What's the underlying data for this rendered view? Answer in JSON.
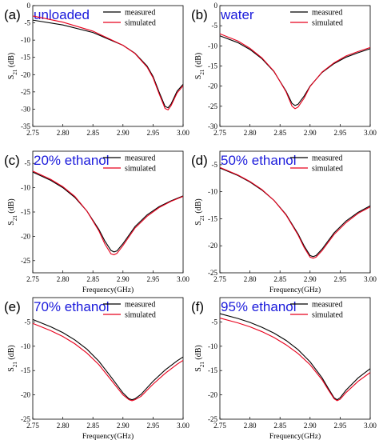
{
  "chart_data": [
    {
      "type": "line",
      "panel_label": "(a)",
      "title": "unloaded",
      "ylabel": "S21 (dB)",
      "xlabel": "",
      "xlim": [
        2.75,
        3.0
      ],
      "ylim": [
        -35,
        0
      ],
      "xticks": [
        "2.75",
        "2.80",
        "2.85",
        "2.90",
        "2.95",
        "3.00"
      ],
      "yticks": [
        "0",
        "-5",
        "-10",
        "-15",
        "-20",
        "-25",
        "-30",
        "-35"
      ],
      "legend": "top-right",
      "series": [
        {
          "name": "measured",
          "color": "#000000",
          "x": [
            2.75,
            2.8,
            2.85,
            2.9,
            2.92,
            2.94,
            2.95,
            2.96,
            2.97,
            2.975,
            2.98,
            2.99,
            3.0
          ],
          "y": [
            -4.2,
            -5.6,
            -7.8,
            -11.5,
            -13.8,
            -17.5,
            -20.5,
            -25.0,
            -29.2,
            -29.6,
            -28.5,
            -24.8,
            -22.8
          ]
        },
        {
          "name": "simulated",
          "color": "#e8001c",
          "x": [
            2.75,
            2.8,
            2.85,
            2.9,
            2.92,
            2.94,
            2.95,
            2.96,
            2.97,
            2.975,
            2.98,
            2.99,
            3.0
          ],
          "y": [
            -3.0,
            -4.8,
            -7.4,
            -11.5,
            -13.9,
            -17.8,
            -20.9,
            -25.5,
            -29.8,
            -30.2,
            -29.0,
            -25.3,
            -23.2
          ]
        }
      ]
    },
    {
      "type": "line",
      "panel_label": "(b)",
      "title": "water",
      "ylabel": "S21 (dB)",
      "xlabel": "",
      "xlim": [
        2.75,
        3.0
      ],
      "ylim": [
        -30,
        0
      ],
      "xticks": [
        "2.75",
        "2.80",
        "2.85",
        "2.90",
        "2.95",
        "3.00"
      ],
      "yticks": [
        "0",
        "-5",
        "-10",
        "-15",
        "-20",
        "-25",
        "-30"
      ],
      "legend": "top-right",
      "series": [
        {
          "name": "measured",
          "color": "#000000",
          "x": [
            2.75,
            2.78,
            2.8,
            2.82,
            2.84,
            2.86,
            2.87,
            2.875,
            2.88,
            2.89,
            2.9,
            2.92,
            2.94,
            2.96,
            2.98,
            3.0
          ],
          "y": [
            -7.5,
            -9.2,
            -10.9,
            -13.2,
            -16.4,
            -21.2,
            -24.3,
            -24.8,
            -24.5,
            -22.5,
            -20.0,
            -16.6,
            -14.4,
            -12.8,
            -11.7,
            -10.7
          ]
        },
        {
          "name": "simulated",
          "color": "#e8001c",
          "x": [
            2.75,
            2.78,
            2.8,
            2.82,
            2.84,
            2.86,
            2.87,
            2.875,
            2.88,
            2.89,
            2.9,
            2.92,
            2.94,
            2.96,
            2.98,
            3.0
          ],
          "y": [
            -7.0,
            -8.8,
            -10.6,
            -13.0,
            -16.3,
            -21.4,
            -25.0,
            -25.6,
            -25.2,
            -23.0,
            -20.1,
            -16.5,
            -14.2,
            -12.5,
            -11.4,
            -10.4
          ]
        }
      ]
    },
    {
      "type": "line",
      "panel_label": "(c)",
      "title": "20% ethanol",
      "ylabel": "S21 (dB)",
      "xlabel": "Frequency(GHz)",
      "xlim": [
        2.75,
        3.0
      ],
      "ylim": [
        -27.5,
        -2.5
      ],
      "xticks": [
        "2.75",
        "2.80",
        "2.85",
        "2.90",
        "2.95",
        "3.00"
      ],
      "yticks": [
        "-5",
        "-10",
        "-15",
        "-20",
        "-25"
      ],
      "legend": "top-right",
      "series": [
        {
          "name": "measured",
          "color": "#000000",
          "x": [
            2.75,
            2.78,
            2.8,
            2.82,
            2.84,
            2.86,
            2.87,
            2.88,
            2.885,
            2.89,
            2.9,
            2.92,
            2.94,
            2.96,
            2.98,
            3.0
          ],
          "y": [
            -6.8,
            -8.5,
            -10.0,
            -12.0,
            -14.8,
            -18.6,
            -21.0,
            -22.9,
            -23.2,
            -23.0,
            -21.5,
            -18.0,
            -15.6,
            -13.9,
            -12.7,
            -11.7
          ]
        },
        {
          "name": "simulated",
          "color": "#e8001c",
          "x": [
            2.75,
            2.78,
            2.8,
            2.82,
            2.84,
            2.86,
            2.87,
            2.88,
            2.885,
            2.89,
            2.9,
            2.92,
            2.94,
            2.96,
            2.98,
            3.0
          ],
          "y": [
            -6.6,
            -8.3,
            -9.8,
            -11.8,
            -14.8,
            -18.9,
            -21.6,
            -23.6,
            -23.8,
            -23.5,
            -21.9,
            -18.3,
            -15.9,
            -14.1,
            -12.8,
            -11.8
          ]
        }
      ]
    },
    {
      "type": "line",
      "panel_label": "(d)",
      "title": "50% ethanol",
      "ylabel": "S21 (dB)",
      "xlabel": "Frequency(GHz)",
      "xlim": [
        2.75,
        3.0
      ],
      "ylim": [
        -25,
        -2.5
      ],
      "xticks": [
        "2.75",
        "2.80",
        "2.85",
        "2.90",
        "2.95",
        "3.00"
      ],
      "yticks": [
        "-5",
        "-10",
        "-15",
        "-20",
        "-25"
      ],
      "legend": "top-right",
      "series": [
        {
          "name": "measured",
          "color": "#000000",
          "x": [
            2.75,
            2.78,
            2.8,
            2.82,
            2.84,
            2.86,
            2.88,
            2.89,
            2.9,
            2.905,
            2.91,
            2.92,
            2.94,
            2.96,
            2.98,
            3.0
          ],
          "y": [
            -5.6,
            -7.0,
            -8.2,
            -9.7,
            -11.6,
            -14.2,
            -17.8,
            -20.0,
            -21.8,
            -22.0,
            -21.8,
            -20.6,
            -17.6,
            -15.4,
            -13.8,
            -12.6
          ]
        },
        {
          "name": "simulated",
          "color": "#e8001c",
          "x": [
            2.75,
            2.78,
            2.8,
            2.82,
            2.84,
            2.86,
            2.88,
            2.89,
            2.9,
            2.905,
            2.91,
            2.92,
            2.94,
            2.96,
            2.98,
            3.0
          ],
          "y": [
            -5.5,
            -6.9,
            -8.1,
            -9.6,
            -11.6,
            -14.3,
            -18.0,
            -20.3,
            -22.1,
            -22.3,
            -22.1,
            -20.9,
            -17.9,
            -15.7,
            -14.0,
            -12.8
          ]
        }
      ]
    },
    {
      "type": "line",
      "panel_label": "(e)",
      "title": "70% ethanol",
      "ylabel": "S21 (dB)",
      "xlabel": "Frequency(GHz)",
      "xlim": [
        2.75,
        3.0
      ],
      "ylim": [
        -25,
        0
      ],
      "xticks": [
        "2.75",
        "2.80",
        "2.85",
        "2.90",
        "2.95",
        "3.00"
      ],
      "yticks": [
        "-5",
        "-10",
        "-15",
        "-20",
        "-25"
      ],
      "legend": "top-right",
      "series": [
        {
          "name": "measured",
          "color": "#000000",
          "x": [
            2.75,
            2.78,
            2.8,
            2.82,
            2.84,
            2.86,
            2.88,
            2.9,
            2.91,
            2.915,
            2.92,
            2.93,
            2.95,
            2.97,
            2.99,
            3.0
          ],
          "y": [
            -4.5,
            -6.0,
            -7.2,
            -8.7,
            -10.6,
            -13.1,
            -16.3,
            -19.6,
            -20.8,
            -21.0,
            -20.8,
            -19.9,
            -17.2,
            -14.9,
            -13.0,
            -12.2
          ]
        },
        {
          "name": "simulated",
          "color": "#e8001c",
          "x": [
            2.75,
            2.78,
            2.8,
            2.82,
            2.84,
            2.86,
            2.88,
            2.9,
            2.91,
            2.915,
            2.92,
            2.93,
            2.95,
            2.97,
            2.99,
            3.0
          ],
          "y": [
            -5.3,
            -6.8,
            -8.0,
            -9.5,
            -11.4,
            -13.8,
            -16.9,
            -20.0,
            -21.0,
            -21.2,
            -21.0,
            -20.3,
            -17.8,
            -15.6,
            -13.7,
            -12.9
          ]
        }
      ]
    },
    {
      "type": "line",
      "panel_label": "(f)",
      "title": "95% ethanol",
      "ylabel": "S21 (dB)",
      "xlabel": "Frequency(GHz)",
      "xlim": [
        2.75,
        3.0
      ],
      "ylim": [
        -25,
        0
      ],
      "xticks": [
        "2.75",
        "2.80",
        "2.85",
        "2.90",
        "2.95",
        "3.00"
      ],
      "yticks": [
        "-5",
        "-10",
        "-15",
        "-20",
        "-25"
      ],
      "legend": "top-right",
      "series": [
        {
          "name": "measured",
          "color": "#000000",
          "x": [
            2.75,
            2.78,
            2.8,
            2.82,
            2.84,
            2.86,
            2.88,
            2.9,
            2.92,
            2.93,
            2.94,
            2.945,
            2.95,
            2.96,
            2.98,
            3.0
          ],
          "y": [
            -3.3,
            -4.3,
            -5.1,
            -6.1,
            -7.3,
            -8.8,
            -10.7,
            -13.2,
            -16.5,
            -18.6,
            -20.6,
            -21.0,
            -20.6,
            -19.0,
            -16.5,
            -14.6
          ]
        },
        {
          "name": "simulated",
          "color": "#e8001c",
          "x": [
            2.75,
            2.78,
            2.8,
            2.82,
            2.84,
            2.86,
            2.88,
            2.9,
            2.92,
            2.93,
            2.94,
            2.945,
            2.95,
            2.96,
            2.98,
            3.0
          ],
          "y": [
            -4.2,
            -5.2,
            -6.0,
            -7.0,
            -8.2,
            -9.7,
            -11.5,
            -13.8,
            -16.9,
            -18.9,
            -20.8,
            -21.2,
            -20.9,
            -19.5,
            -17.2,
            -15.4
          ]
        }
      ]
    }
  ]
}
